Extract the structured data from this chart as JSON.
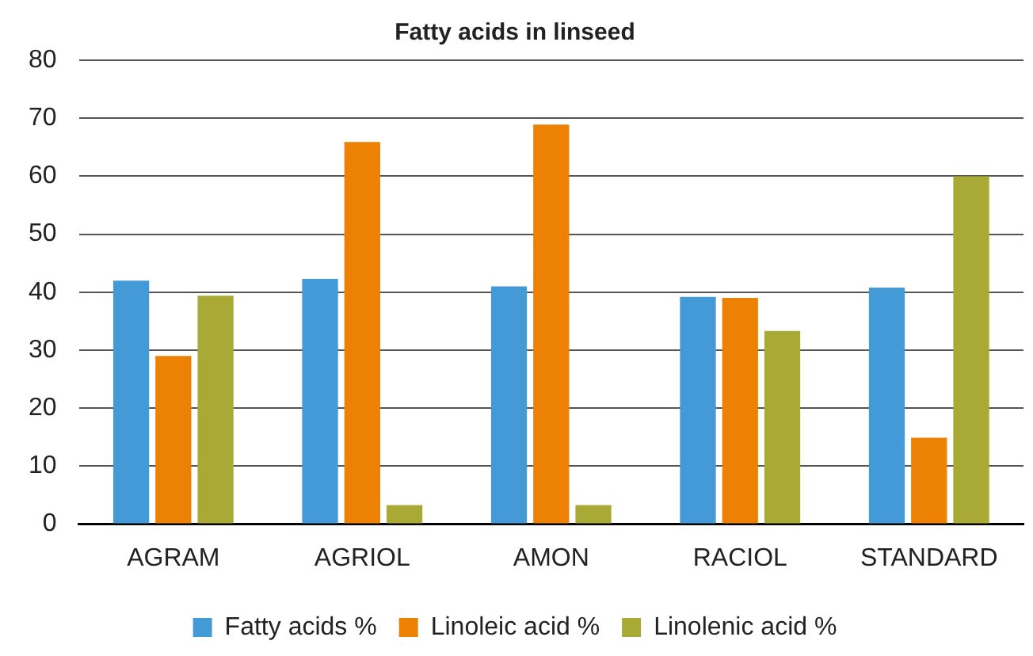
{
  "chart_data": {
    "type": "bar",
    "title": "Fatty acids in linseed",
    "categories": [
      "AGRAM",
      "AGRIOL",
      "AMON",
      "RACIOL",
      "STANDARD"
    ],
    "series": [
      {
        "name": "Fatty acids %",
        "color": "#449ad6",
        "values": [
          42,
          42.3,
          41,
          39.2,
          40.8
        ]
      },
      {
        "name": "Linoleic acid %",
        "color": "#ec8103",
        "values": [
          29,
          65.9,
          68.9,
          39,
          14.9
        ]
      },
      {
        "name": "Linolenic acid %",
        "color": "#a8aa35",
        "values": [
          39.4,
          3.3,
          3.3,
          33.3,
          60
        ]
      }
    ],
    "ylim": [
      0,
      80
    ],
    "yticks": [
      0,
      10,
      20,
      30,
      40,
      50,
      60,
      70,
      80
    ],
    "grid": "y",
    "legend": "bottom"
  }
}
